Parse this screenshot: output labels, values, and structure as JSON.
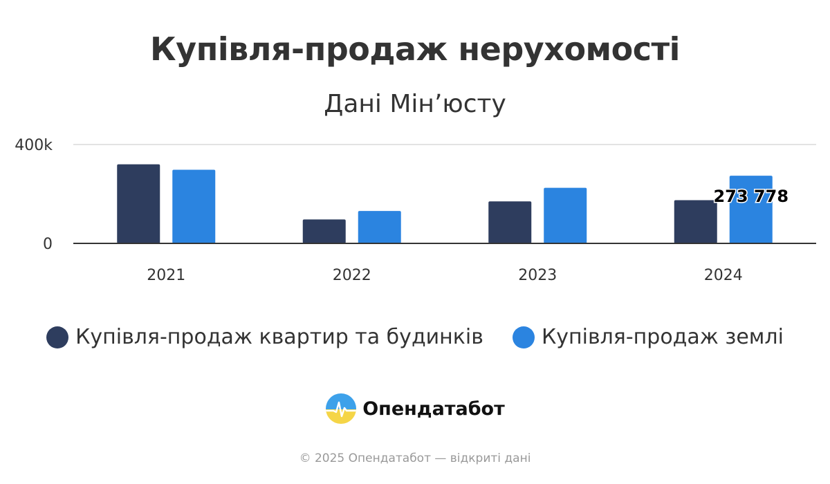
{
  "chart_data": {
    "type": "bar",
    "title": "Купівля-продаж нерухомості",
    "subtitle": "Дані Мін’юсту",
    "categories": [
      "2021",
      "2022",
      "2023",
      "2024"
    ],
    "series": [
      {
        "name": "Купівля-продаж квартир та будинків",
        "color": "#2e3d5e",
        "values": [
          320000,
          97000,
          170000,
          175000
        ]
      },
      {
        "name": "Купівля-продаж землі",
        "color": "#2b84e0",
        "values": [
          298000,
          131000,
          225000,
          273778
        ]
      }
    ],
    "ylim": [
      0,
      400000
    ],
    "yticks": [
      {
        "value": 0,
        "label": "0"
      },
      {
        "value": 400000,
        "label": "400k"
      }
    ],
    "data_labels": [
      {
        "series": 1,
        "category": 3,
        "text": "273 778"
      }
    ],
    "grid": true,
    "legend_position": "bottom"
  },
  "brand": {
    "name": "Опендатабот",
    "logo_icon": "opendatabot-logo-icon"
  },
  "footer": {
    "copyright": "© 2025 Опендатабот — відкриті дані"
  }
}
